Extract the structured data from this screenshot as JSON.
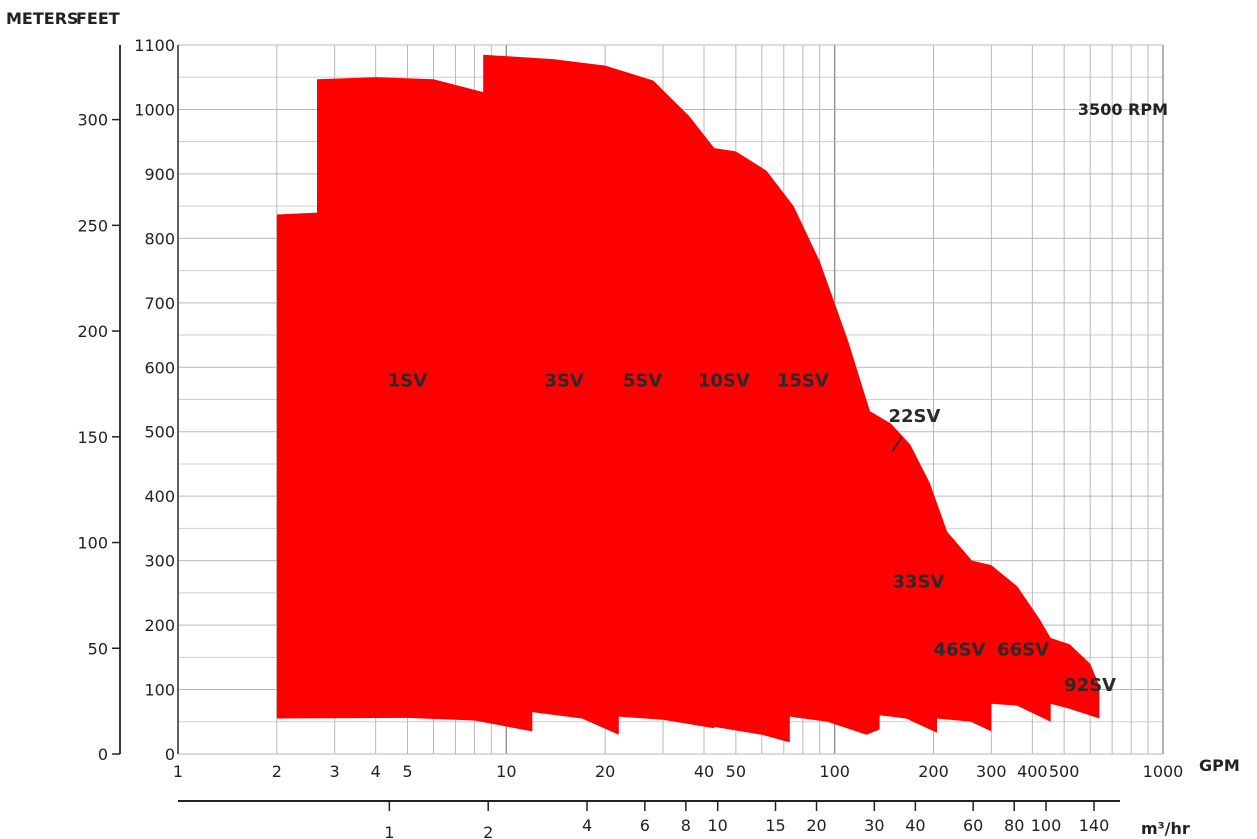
{
  "chart_data": {
    "type": "area",
    "title": "3500 RPM",
    "y_left_label": "METERS",
    "y_right_label": "FEET",
    "x_label": "GPM",
    "x2_label": "m³/hr",
    "x_scale": "log",
    "x_range": [
      1,
      1000
    ],
    "y_feet_range": [
      0,
      1100
    ],
    "y_meters_range": [
      0,
      335
    ],
    "x_ticks": [
      1,
      2,
      3,
      4,
      5,
      10,
      20,
      40,
      50,
      100,
      200,
      300,
      400,
      500,
      1000
    ],
    "x_tick_labels": [
      "1",
      "2",
      "3",
      "4",
      "5",
      "10",
      "20",
      "40",
      "50",
      "100",
      "200",
      "300",
      "400",
      "500",
      "1000"
    ],
    "y_feet_ticks": [
      0,
      100,
      200,
      300,
      400,
      500,
      600,
      700,
      800,
      900,
      1000,
      1100
    ],
    "y_feet_tick_labels": [
      "0",
      "100",
      "200",
      "300",
      "400",
      "500",
      "600",
      "700",
      "800",
      "900",
      "1000",
      "1100"
    ],
    "y_meters_ticks": [
      0,
      50,
      100,
      150,
      200,
      250,
      300
    ],
    "y_meters_tick_labels": [
      "0",
      "50",
      "100",
      "150",
      "200",
      "250",
      "300"
    ],
    "m3hr_ticks": [
      1,
      2,
      4,
      6,
      8,
      10,
      15,
      20,
      30,
      40,
      60,
      80,
      100,
      140
    ],
    "m3hr_tick_labels": [
      "1",
      "2",
      "4",
      "6",
      "8",
      "10",
      "15",
      "20",
      "30",
      "40",
      "60",
      "80",
      "100",
      "140"
    ],
    "grid": true,
    "fill_color": "#ff0000",
    "upper_boundary": [
      {
        "x": 2.0,
        "y": 837
      },
      {
        "x": 2.65,
        "y": 840
      },
      {
        "x": 2.65,
        "y": 1047
      },
      {
        "x": 4.0,
        "y": 1050
      },
      {
        "x": 6.0,
        "y": 1047
      },
      {
        "x": 8.5,
        "y": 1027
      },
      {
        "x": 8.5,
        "y": 1085
      },
      {
        "x": 14.0,
        "y": 1078
      },
      {
        "x": 20.0,
        "y": 1068
      },
      {
        "x": 28.0,
        "y": 1045
      },
      {
        "x": 36.0,
        "y": 990
      },
      {
        "x": 43.0,
        "y": 940
      },
      {
        "x": 50.0,
        "y": 935
      },
      {
        "x": 62.0,
        "y": 905
      },
      {
        "x": 75.0,
        "y": 850
      },
      {
        "x": 90.0,
        "y": 765
      },
      {
        "x": 110.0,
        "y": 640
      },
      {
        "x": 128.0,
        "y": 532
      },
      {
        "x": 148.0,
        "y": 513
      },
      {
        "x": 170.0,
        "y": 480
      },
      {
        "x": 195.0,
        "y": 420
      },
      {
        "x": 220.0,
        "y": 345
      },
      {
        "x": 262.0,
        "y": 300
      },
      {
        "x": 300.0,
        "y": 293
      },
      {
        "x": 360.0,
        "y": 260
      },
      {
        "x": 420.0,
        "y": 210
      },
      {
        "x": 455.0,
        "y": 180
      },
      {
        "x": 520.0,
        "y": 170
      },
      {
        "x": 600.0,
        "y": 140
      },
      {
        "x": 640.0,
        "y": 106
      },
      {
        "x": 640.0,
        "y": 60
      }
    ],
    "lower_boundary": [
      {
        "x": 2.0,
        "y": 55
      },
      {
        "x": 5.0,
        "y": 56
      },
      {
        "x": 8.0,
        "y": 52
      },
      {
        "x": 12.0,
        "y": 35
      },
      {
        "x": 12.0,
        "y": 65
      },
      {
        "x": 17.0,
        "y": 55
      },
      {
        "x": 22.0,
        "y": 30
      },
      {
        "x": 22.0,
        "y": 58
      },
      {
        "x": 30.0,
        "y": 53
      },
      {
        "x": 43.0,
        "y": 40
      },
      {
        "x": 43.0,
        "y": 42
      },
      {
        "x": 60.0,
        "y": 30
      },
      {
        "x": 73.0,
        "y": 18
      },
      {
        "x": 73.0,
        "y": 58
      },
      {
        "x": 95.0,
        "y": 50
      },
      {
        "x": 125.0,
        "y": 30
      },
      {
        "x": 137.0,
        "y": 38
      },
      {
        "x": 137.0,
        "y": 60
      },
      {
        "x": 165.0,
        "y": 55
      },
      {
        "x": 205.0,
        "y": 33
      },
      {
        "x": 205.0,
        "y": 55
      },
      {
        "x": 260.0,
        "y": 50
      },
      {
        "x": 300.0,
        "y": 35
      },
      {
        "x": 300.0,
        "y": 78
      },
      {
        "x": 360.0,
        "y": 75
      },
      {
        "x": 455.0,
        "y": 50
      },
      {
        "x": 455.0,
        "y": 78
      },
      {
        "x": 520.0,
        "y": 70
      },
      {
        "x": 640.0,
        "y": 55
      }
    ],
    "series_labels": [
      {
        "name": "1SV",
        "x": 5.0,
        "y": 570
      },
      {
        "name": "3SV",
        "x": 15.0,
        "y": 570
      },
      {
        "name": "5SV",
        "x": 26.0,
        "y": 570
      },
      {
        "name": "10SV",
        "x": 46.0,
        "y": 570
      },
      {
        "name": "15SV",
        "x": 80.0,
        "y": 570
      },
      {
        "name": "22SV",
        "x": 175.0,
        "y": 515
      },
      {
        "name": "33SV",
        "x": 180.0,
        "y": 258
      },
      {
        "name": "46SV",
        "x": 240.0,
        "y": 153
      },
      {
        "name": "66SV",
        "x": 375.0,
        "y": 153
      },
      {
        "name": "92SV",
        "x": 600.0,
        "y": 98
      }
    ]
  },
  "colors": {
    "fill": "#ff0000",
    "text": "#222222",
    "grid": "#b9b9b9"
  }
}
